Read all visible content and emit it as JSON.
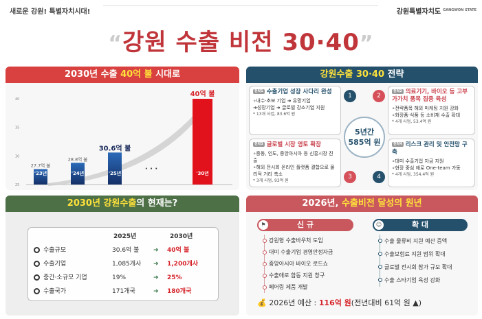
{
  "header": {
    "slogan": "새로운 강원! 특별자치시대!",
    "logo_text": "강원특별자치도",
    "logo_en": "GANGWON STATE"
  },
  "title": {
    "open_quote": "“",
    "text": "강원 수출 비전 30·40",
    "close_quote": "”"
  },
  "panel1": {
    "title_a": "2030년 수출 ",
    "title_b": "40억 불",
    "title_c": " 시대로",
    "icon": "money-icon",
    "ellipsis": "· · ·"
  },
  "chart_data": {
    "type": "bar",
    "categories": [
      "'23년",
      "'24년",
      "'25년",
      "'30년"
    ],
    "values": [
      27.7,
      28.8,
      30.6,
      40
    ],
    "data_labels": [
      "27.7억 불",
      "28.8억 불",
      "30.6억 불",
      "40억 불"
    ],
    "yticks": [
      "25",
      "30",
      "35",
      "40"
    ],
    "ylim": [
      25,
      40
    ],
    "colors": {
      "actual": "#1f4f9a",
      "target": "#e1121c"
    }
  },
  "panel2": {
    "title_a": "강원수출 30·40",
    "title_b": " 전략",
    "icon": "gear-icon",
    "center": [
      "5년간",
      "585억 원"
    ],
    "strategies": [
      {
        "tag": "전략1",
        "num": "1",
        "title": "수출기업 성장 사다리 완성",
        "lines": [
          "∘내수·초보 기업 ➜ 유망기업",
          "➜성장기업 ➜ 글로벌 강소기업 지원"
        ],
        "note": "* 13개 사업, 83.6억 원"
      },
      {
        "tag": "전략2",
        "num": "2",
        "title": "의료기기, 바이오 등 고부가가치 품목 집중 육성",
        "lines": [
          "∘전략품목 해외 마케팅 지원 강화",
          "∘화장품·식품 등 소비재 수출 확대"
        ],
        "note": "* 4개 사업, 53.4억 원"
      },
      {
        "tag": "전략3",
        "num": "3",
        "title": "글로벌 시장 영토 확장",
        "lines": [
          "∘중동, 인도, 중앙아시아 등 신흥시장 진출",
          "∘해외 전시회 온라인 플랫폼 결합으로 물리적 거리 축소"
        ],
        "note": "* 3개 사업, 93억 원"
      },
      {
        "tag": "전략4",
        "num": "4",
        "title": "리스크 관리 및 안전망 구축",
        "lines": [
          "∘대미 수출기업 자금 지원",
          "∘현장 중심 애로 One-team 가동"
        ],
        "note": "* 4개 사업, 354.4억 원"
      }
    ]
  },
  "panel3": {
    "title_a": "2030년 강원수출",
    "title_b": "의 현재는?",
    "icon": "globe-icon",
    "col1": "2025년",
    "col2": "2030년",
    "rows": [
      {
        "label": "수출규모",
        "v2025": "30.6억 불",
        "v2030": "40억 불",
        "icon": "pie-chart-icon"
      },
      {
        "label": "수출기업",
        "v2025": "1,085개사",
        "v2030": "1,200개사",
        "icon": "building-icon"
      },
      {
        "label": "중간·소규모 기업",
        "v2025": "19%",
        "v2030": "25%",
        "icon": "factory-icon"
      },
      {
        "label": "수출국가",
        "v2025": "171개국",
        "v2030": "180개국",
        "icon": "globe-icon"
      }
    ],
    "arrow": "➜"
  },
  "panel4": {
    "title_a": "2026년, ",
    "title_b": "수출비전 달성의 원년",
    "icon": "ship-icon",
    "new_label": "신 규",
    "new_items": [
      "강원형 수출바우처 도입",
      "대미 수출기업 경영안정자금",
      "중앙아시아 바이오 로드쇼",
      "수출애로 합동 지원 창구",
      "페어링 제품 개발"
    ],
    "expand_label": "확 대",
    "expand_items": [
      "수출 물류비 지원 예산 증액",
      "수출보험료 지원 범위 확대",
      "글로벌 전시회 참가 규모 확대",
      "수출 스타기업 육성 강화"
    ],
    "budget_label": "2026년 예산 : ",
    "budget_value": "116억 원",
    "budget_note": "(전년대비 61억 원 ▲)"
  }
}
